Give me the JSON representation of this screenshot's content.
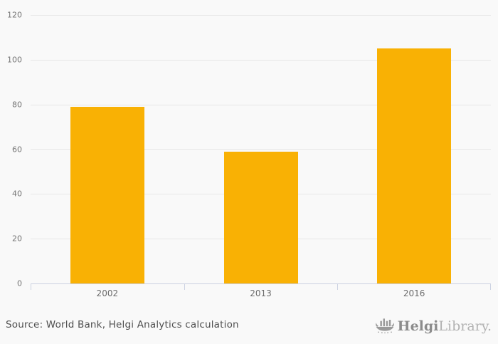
{
  "chart_data": {
    "type": "bar",
    "categories": [
      "2002",
      "2013",
      "2016"
    ],
    "values": [
      79,
      59,
      105
    ],
    "title": "",
    "xlabel": "",
    "ylabel": "",
    "ylim": [
      0,
      120
    ],
    "yticks": [
      0,
      20,
      40,
      60,
      80,
      100,
      120
    ],
    "grid": true,
    "legend": false,
    "bar_color": "#F9B104"
  },
  "colors": {
    "background": "#F9F9F9",
    "bar": "#F9B104",
    "gridline": "#E7E7E7",
    "axis_line": "#CCD2E2",
    "y_tick_label": "#757575",
    "x_tick_label": "#6B6B6B",
    "source_text": "#4F4F4F",
    "logo_bold": "#8C8C8C",
    "logo_light": "#B2B2B2"
  },
  "footer": {
    "source_text": "Source: World Bank, Helgi Analytics calculation",
    "logo": {
      "icon": "viking-ship-bar-chart-icon",
      "brand_bold": "Helgi",
      "brand_light": "Library."
    }
  }
}
